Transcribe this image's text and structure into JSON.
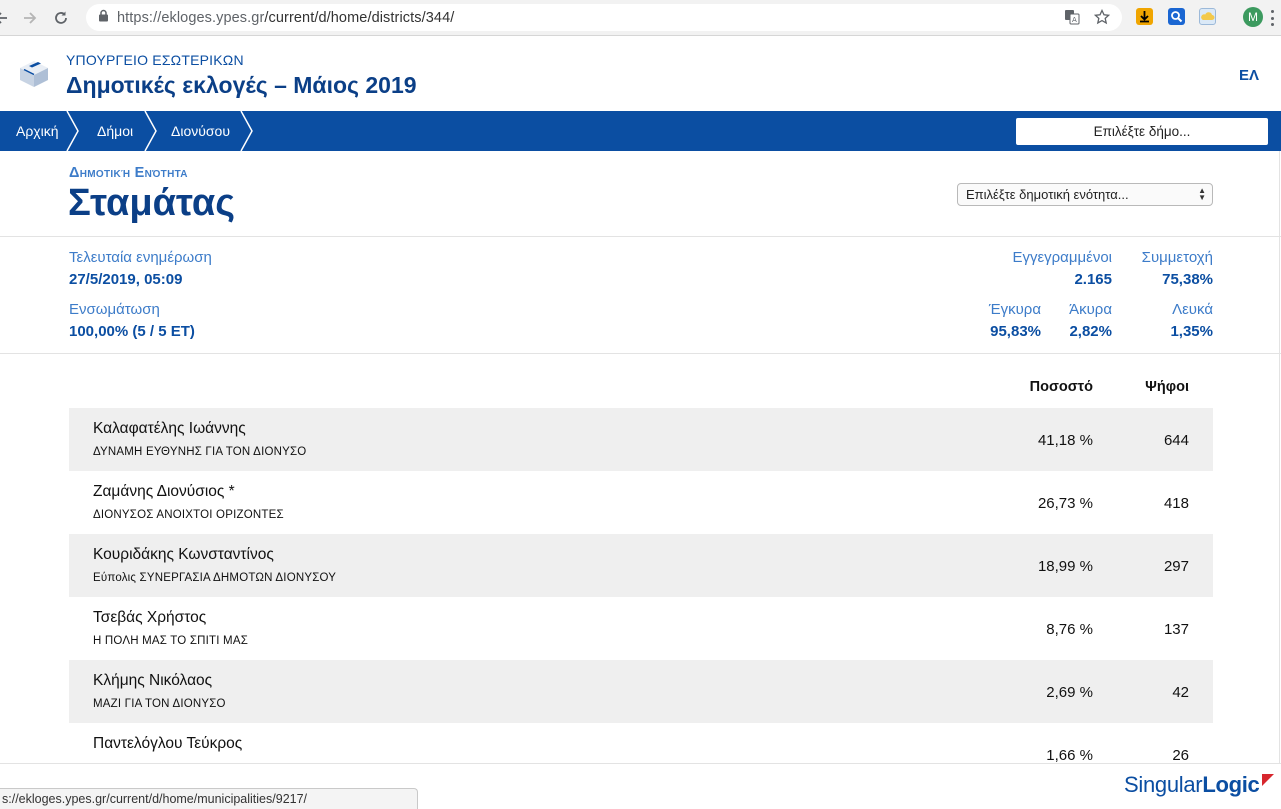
{
  "browser": {
    "url_host": "https://ekloges.ypes.gr",
    "url_path": "/current/d/home/districts/344/",
    "avatar_initial": "M",
    "status_url": "s://ekloges.ypes.gr/current/d/home/municipalities/9217/"
  },
  "header": {
    "ministry": "ΥΠΟΥΡΓΕΙΟ ΕΣΩΤΕΡΙΚΩΝ",
    "title": "Δημοτικές εκλογές – Μάιος 2019",
    "language": "ΕΛ"
  },
  "breadcrumb": {
    "items": [
      "Αρχική",
      "Δήμοι",
      "Διονύσου"
    ],
    "municipality_select": "Επιλέξτε δήμο..."
  },
  "district": {
    "label": "Δημοτική Ενότητα",
    "name": "Σταμάτας",
    "unit_select": "Επιλέξτε δημοτική ενότητα..."
  },
  "stats": {
    "last_update_label": "Τελευταία ενημέρωση",
    "last_update_value": "27/5/2019, 05:09",
    "integration_label": "Ενσωμάτωση",
    "integration_value": "100,00% (5 / 5 ΕΤ)",
    "registered_label": "Εγγεγραμμένοι",
    "registered_value": "2.165",
    "turnout_label": "Συμμετοχή",
    "turnout_value": "75,38%",
    "valid_label": "Έγκυρα",
    "valid_value": "95,83%",
    "invalid_label": "Άκυρα",
    "invalid_value": "2,82%",
    "blank_label": "Λευκά",
    "blank_value": "1,35%"
  },
  "results": {
    "col_percent": "Ποσοστό",
    "col_votes": "Ψήφοι",
    "rows": [
      {
        "candidate": "Καλαφατέλης Ιωάννης",
        "party": "ΔΥΝΑΜΗ ΕΥΘΥΝΗΣ ΓΙΑ ΤΟΝ ΔΙΟΝΥΣΟ",
        "percent": "41,18 %",
        "votes": "644"
      },
      {
        "candidate": "Ζαμάνης Διονύσιος *",
        "party": "ΔΙΟΝΥΣΟΣ ΑΝΟΙΧΤΟΙ ΟΡΙΖΟΝΤΕΣ",
        "percent": "26,73 %",
        "votes": "418"
      },
      {
        "candidate": "Κουριδάκης Κωνσταντίνος",
        "party": "Εύπολις ΣΥΝΕΡΓΑΣΙΑ ΔΗΜΟΤΩΝ ΔΙΟΝΥΣΟΥ",
        "percent": "18,99 %",
        "votes": "297"
      },
      {
        "candidate": "Τσεβάς Χρήστος",
        "party": "Η ΠΟΛΗ ΜΑΣ ΤΟ ΣΠΙΤΙ ΜΑΣ",
        "percent": "8,76 %",
        "votes": "137"
      },
      {
        "candidate": "Κλήμης Νικόλαος",
        "party": "ΜΑΖΙ ΓΙΑ ΤΟΝ ΔΙΟΝΥΣΟ",
        "percent": "2,69 %",
        "votes": "42"
      },
      {
        "candidate": "Παντελόγλου Τεύκρος",
        "party": "",
        "percent": "1,66 %",
        "votes": "26"
      }
    ]
  },
  "footer": {
    "brand_light": "Singular",
    "brand_bold": "Logic"
  },
  "colors": {
    "primary": "#0b4ea2",
    "title": "#0b3f87",
    "label": "#3d7cc9",
    "row_alt": "#efefef"
  }
}
